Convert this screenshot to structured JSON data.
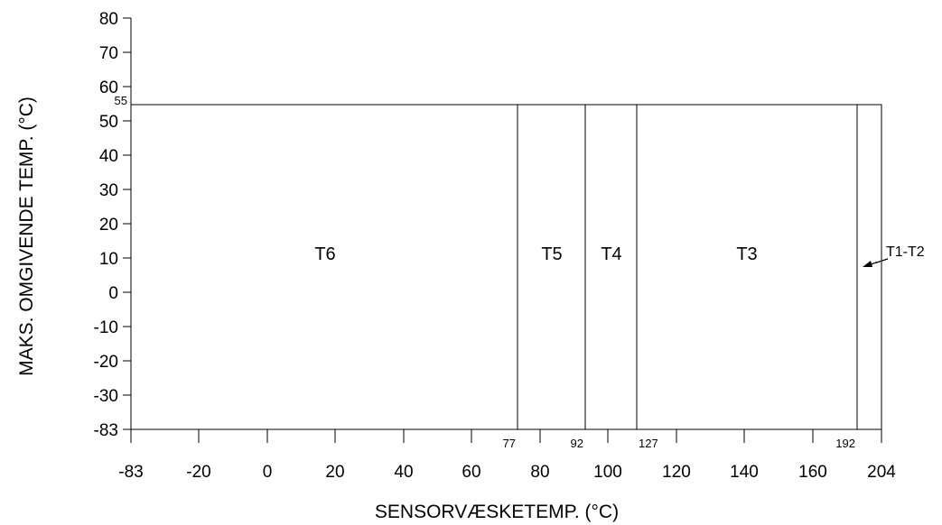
{
  "chart_data": {
    "type": "area",
    "xlabel": "SENSORVÆSKETEMP. (°C)",
    "ylabel": "MAKS. OMGIVENDE TEMP. (°C)",
    "x_tick_labels": [
      "-83",
      "-20",
      "0",
      "20",
      "40",
      "60",
      "80",
      "100",
      "120",
      "140",
      "160",
      "204"
    ],
    "y_tick_labels": [
      "80",
      "70",
      "60",
      "50",
      "40",
      "30",
      "20",
      "10",
      "0",
      "-10",
      "-20",
      "-30",
      "-83"
    ],
    "max_ambient": {
      "value": 55,
      "label": "55"
    },
    "boundaries": [
      {
        "value": 77,
        "label": "77"
      },
      {
        "value": 92,
        "label": "92"
      },
      {
        "value": 127,
        "label": "127"
      },
      {
        "value": 192,
        "label": "192"
      }
    ],
    "zones": [
      {
        "name": "T6",
        "from": -83,
        "to": 77
      },
      {
        "name": "T5",
        "from": 77,
        "to": 92
      },
      {
        "name": "T4",
        "from": 92,
        "to": 127
      },
      {
        "name": "T3",
        "from": 127,
        "to": 192
      },
      {
        "name": "T1–T2",
        "from": 192,
        "to": 204
      }
    ],
    "annotation": "T1-T2",
    "grid": false
  }
}
